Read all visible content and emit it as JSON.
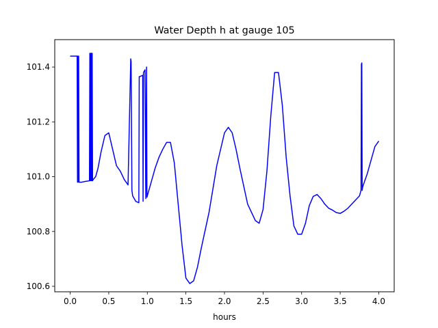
{
  "chart_data": {
    "type": "line",
    "title": "Water Depth h at gauge 105",
    "xlabel": "hours",
    "ylabel": "",
    "xlim": [
      -0.2,
      4.2
    ],
    "ylim": [
      100.58,
      101.5
    ],
    "grid": false,
    "legend": "none",
    "xticks": [
      0.0,
      0.5,
      1.0,
      1.5,
      2.0,
      2.5,
      3.0,
      3.5,
      4.0
    ],
    "xtick_labels": [
      "0.0",
      "0.5",
      "1.0",
      "1.5",
      "2.0",
      "2.5",
      "3.0",
      "3.5",
      "4.0"
    ],
    "yticks": [
      100.6,
      100.8,
      101.0,
      101.2,
      101.4
    ],
    "ytick_labels": [
      "100.6",
      "100.8",
      "101.0",
      "101.2",
      "101.4"
    ],
    "series": [
      {
        "color": "#0000ff",
        "x": [
          0.0,
          0.09,
          0.095,
          0.1,
          0.105,
          0.11,
          0.115,
          0.12,
          0.15,
          0.2,
          0.25,
          0.255,
          0.26,
          0.265,
          0.27,
          0.275,
          0.28,
          0.285,
          0.29,
          0.3,
          0.33,
          0.36,
          0.4,
          0.45,
          0.5,
          0.55,
          0.6,
          0.65,
          0.7,
          0.75,
          0.785,
          0.79,
          0.8,
          0.805,
          0.81,
          0.85,
          0.89,
          0.895,
          0.9,
          0.94,
          0.945,
          0.95,
          0.96,
          0.97,
          0.98,
          0.99,
          0.995,
          1.0,
          1.02,
          1.05,
          1.1,
          1.15,
          1.2,
          1.25,
          1.3,
          1.35,
          1.4,
          1.45,
          1.5,
          1.55,
          1.6,
          1.65,
          1.7,
          1.8,
          1.9,
          2.0,
          2.05,
          2.1,
          2.15,
          2.2,
          2.3,
          2.4,
          2.45,
          2.5,
          2.55,
          2.6,
          2.65,
          2.7,
          2.75,
          2.8,
          2.85,
          2.9,
          2.95,
          3.0,
          3.05,
          3.1,
          3.15,
          3.2,
          3.25,
          3.3,
          3.35,
          3.4,
          3.45,
          3.5,
          3.55,
          3.6,
          3.65,
          3.7,
          3.75,
          3.77,
          3.775,
          3.78,
          3.785,
          3.79,
          3.8,
          3.85,
          3.9,
          3.95,
          4.0
        ],
        "y": [
          101.44,
          101.44,
          100.98,
          101.44,
          100.98,
          101.44,
          100.98,
          100.98,
          100.98,
          100.983,
          100.985,
          101.45,
          100.985,
          101.45,
          100.985,
          101.45,
          100.985,
          101.45,
          100.985,
          100.99,
          101.0,
          101.03,
          101.09,
          101.15,
          101.16,
          101.1,
          101.04,
          101.02,
          100.99,
          100.97,
          101.43,
          101.42,
          100.95,
          100.94,
          100.93,
          100.91,
          100.905,
          101.365,
          101.365,
          101.37,
          100.91,
          101.38,
          101.385,
          101.39,
          100.92,
          101.4,
          100.925,
          100.93,
          100.95,
          100.98,
          101.03,
          101.07,
          101.1,
          101.125,
          101.125,
          101.05,
          100.9,
          100.75,
          100.63,
          100.61,
          100.62,
          100.67,
          100.74,
          100.87,
          101.04,
          101.16,
          101.18,
          101.16,
          101.1,
          101.03,
          100.9,
          100.84,
          100.83,
          100.88,
          101.02,
          101.22,
          101.38,
          101.38,
          101.26,
          101.07,
          100.93,
          100.82,
          100.79,
          100.79,
          100.83,
          100.895,
          100.928,
          100.935,
          100.92,
          100.9,
          100.885,
          100.878,
          100.869,
          100.866,
          100.874,
          100.885,
          100.9,
          100.915,
          100.93,
          100.95,
          101.41,
          101.415,
          100.95,
          100.96,
          100.97,
          101.01,
          101.06,
          101.11,
          101.13
        ]
      }
    ]
  }
}
